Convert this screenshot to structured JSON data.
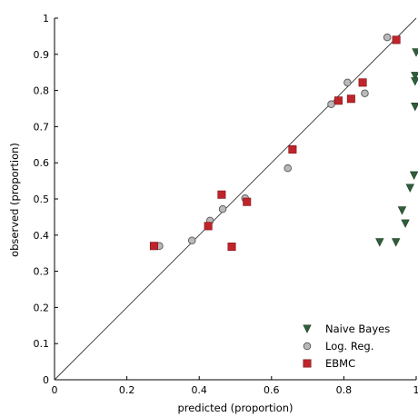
{
  "chart_data": {
    "type": "scatter",
    "xlabel": "predicted (proportion)",
    "ylabel": "observed (proportion)",
    "xlim": [
      0,
      1
    ],
    "ylim": [
      0,
      1
    ],
    "x_ticks": [
      "0",
      "0.2",
      "0.4",
      "0.6",
      "0.8",
      "1"
    ],
    "y_ticks": [
      "0",
      "0.1",
      "0.2",
      "0.3",
      "0.4",
      "0.5",
      "0.6",
      "0.7",
      "0.8",
      "0.9",
      "1"
    ],
    "grid": false,
    "legend_position": "bottom-right",
    "reference_line": {
      "from": [
        0,
        0
      ],
      "to": [
        1,
        1
      ]
    },
    "series": [
      {
        "name": "Naive Bayes",
        "marker": "triangle-down",
        "color": "#2f5f3a",
        "points": [
          {
            "x": 1.0,
            "y": 0.905
          },
          {
            "x": 0.997,
            "y": 0.84
          },
          {
            "x": 0.997,
            "y": 0.825
          },
          {
            "x": 0.997,
            "y": 0.755
          },
          {
            "x": 0.994,
            "y": 0.565
          },
          {
            "x": 0.983,
            "y": 0.53
          },
          {
            "x": 0.961,
            "y": 0.468
          },
          {
            "x": 0.97,
            "y": 0.432
          },
          {
            "x": 0.899,
            "y": 0.38
          },
          {
            "x": 0.944,
            "y": 0.38
          }
        ]
      },
      {
        "name": "Log. Reg.",
        "marker": "circle",
        "color": "#b9b9b9",
        "points": [
          {
            "x": 0.92,
            "y": 0.947
          },
          {
            "x": 0.81,
            "y": 0.822
          },
          {
            "x": 0.858,
            "y": 0.792
          },
          {
            "x": 0.765,
            "y": 0.762
          },
          {
            "x": 0.645,
            "y": 0.585
          },
          {
            "x": 0.527,
            "y": 0.502
          },
          {
            "x": 0.465,
            "y": 0.472
          },
          {
            "x": 0.43,
            "y": 0.44
          },
          {
            "x": 0.38,
            "y": 0.385
          },
          {
            "x": 0.29,
            "y": 0.37
          }
        ]
      },
      {
        "name": "EBMC",
        "marker": "square",
        "color": "#c0242b",
        "points": [
          {
            "x": 0.945,
            "y": 0.94
          },
          {
            "x": 0.852,
            "y": 0.822
          },
          {
            "x": 0.785,
            "y": 0.772
          },
          {
            "x": 0.82,
            "y": 0.777
          },
          {
            "x": 0.658,
            "y": 0.637
          },
          {
            "x": 0.462,
            "y": 0.512
          },
          {
            "x": 0.532,
            "y": 0.492
          },
          {
            "x": 0.425,
            "y": 0.425
          },
          {
            "x": 0.49,
            "y": 0.368
          },
          {
            "x": 0.275,
            "y": 0.37
          }
        ]
      }
    ]
  }
}
